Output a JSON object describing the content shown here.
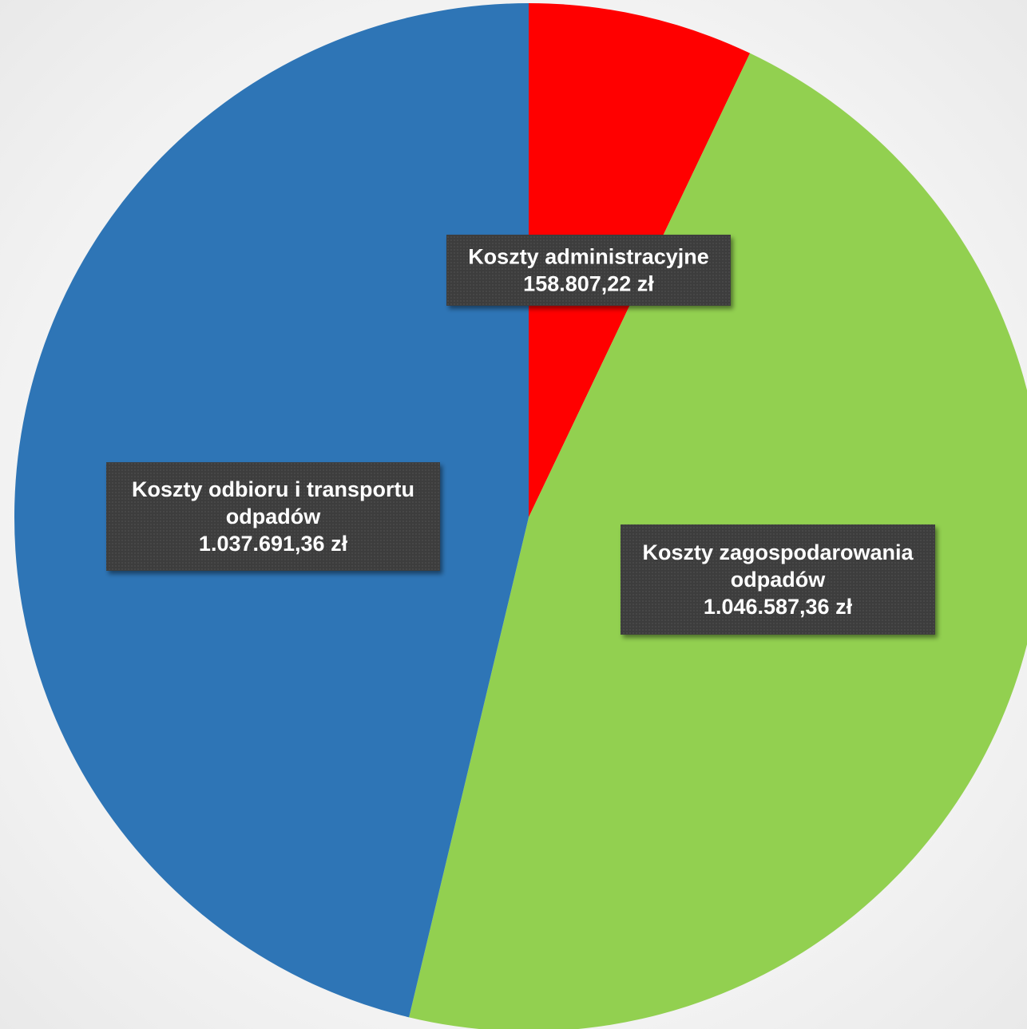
{
  "chart_data": {
    "type": "pie",
    "categories": [
      "Koszty administracyjne",
      "Koszty zagospodarowania odpadów",
      "Koszty odbioru i transportu odpadów"
    ],
    "values": [
      158807.22,
      1046587.36,
      1037691.36
    ],
    "value_labels": [
      "158.807,22 zł",
      "1.046.587,36 zł",
      "1.037.691,36 zł"
    ],
    "label_lines": [
      [
        "Koszty administracyjne",
        "158.807,22 zł"
      ],
      [
        "Koszty zagospodarowania",
        "odpadów",
        "1.046.587,36 zł"
      ],
      [
        "Koszty odbioru i transportu",
        "odpadów",
        "1.037.691,36 zł"
      ]
    ],
    "colors": [
      "#ff0000",
      "#92d050",
      "#2e75b6"
    ],
    "start_angle_deg": 0,
    "direction": "clockwise",
    "legend": "none",
    "data_labels": "boxed-dark"
  }
}
